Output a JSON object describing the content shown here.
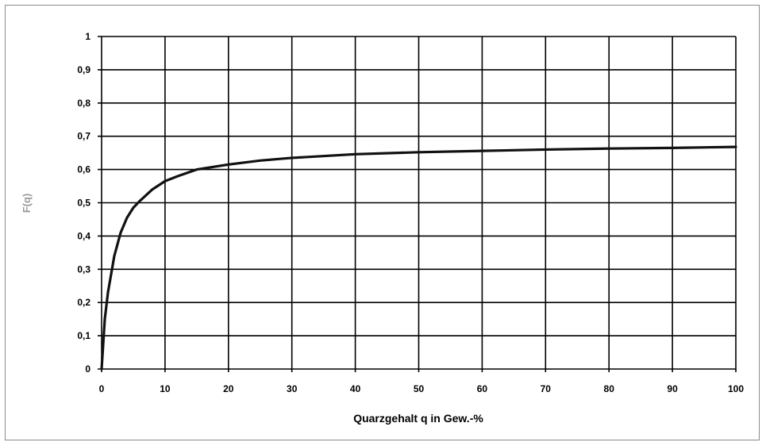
{
  "chart_data": {
    "type": "line",
    "title": "",
    "xlabel": "Quarzgehalt q in Gew.-%",
    "ylabel": "F(q)",
    "xlim": [
      0,
      100
    ],
    "ylim": [
      0,
      1
    ],
    "x_ticks": [
      "0",
      "10",
      "20",
      "30",
      "40",
      "50",
      "60",
      "70",
      "80",
      "90",
      "100"
    ],
    "y_ticks": [
      "0",
      "0,1",
      "0,2",
      "0,3",
      "0,4",
      "0,5",
      "0,6",
      "0,7",
      "0,8",
      "0,9",
      "1"
    ],
    "grid": true,
    "legend": "none",
    "series": [
      {
        "color": "#111111",
        "x": [
          0,
          0.5,
          1,
          2,
          3,
          4,
          5,
          6,
          8,
          10,
          12,
          15,
          20,
          25,
          30,
          40,
          50,
          60,
          70,
          80,
          90,
          100
        ],
        "y": [
          0,
          0.15,
          0.23,
          0.34,
          0.41,
          0.455,
          0.485,
          0.505,
          0.54,
          0.565,
          0.58,
          0.6,
          0.615,
          0.627,
          0.635,
          0.646,
          0.652,
          0.656,
          0.66,
          0.663,
          0.665,
          0.668
        ]
      }
    ]
  }
}
